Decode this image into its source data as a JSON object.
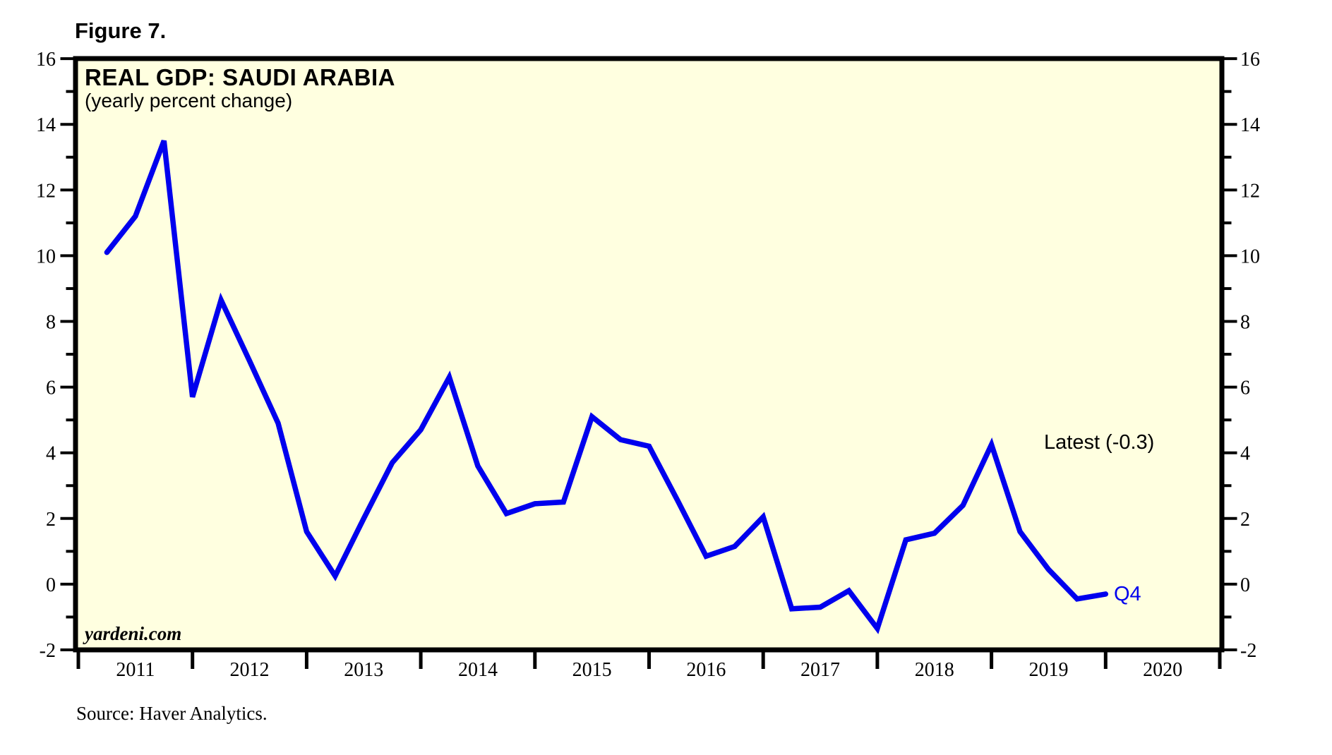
{
  "figure_label": "Figure 7.",
  "header": {
    "title": "REAL GDP: SAUDI ARABIA",
    "subtitle": "(yearly percent change)"
  },
  "watermark": "yardeni.com",
  "annotations": {
    "latest": "Latest (-0.3)",
    "last_point": "Q4"
  },
  "source": "Source: Haver Analytics.",
  "colors": {
    "line": "#0000EE",
    "plot_background": "#FFFFE0",
    "frame": "#000000",
    "text": "#000000"
  },
  "chart_data": {
    "type": "line",
    "title": "REAL GDP: SAUDI ARABIA",
    "subtitle": "(yearly percent change)",
    "series_name": "Saudi Arabia real GDP, yearly percent change (quarterly)",
    "x": [
      "2011 Q1",
      "2011 Q2",
      "2011 Q3",
      "2011 Q4",
      "2012 Q1",
      "2012 Q2",
      "2012 Q3",
      "2012 Q4",
      "2013 Q1",
      "2013 Q2",
      "2013 Q3",
      "2013 Q4",
      "2014 Q1",
      "2014 Q2",
      "2014 Q3",
      "2014 Q4",
      "2015 Q1",
      "2015 Q2",
      "2015 Q3",
      "2015 Q4",
      "2016 Q1",
      "2016 Q2",
      "2016 Q3",
      "2016 Q4",
      "2017 Q1",
      "2017 Q2",
      "2017 Q3",
      "2017 Q4",
      "2018 Q1",
      "2018 Q2",
      "2018 Q3",
      "2018 Q4",
      "2019 Q1",
      "2019 Q2",
      "2019 Q3",
      "2019 Q4"
    ],
    "values": [
      10.1,
      11.2,
      13.5,
      5.7,
      8.65,
      6.8,
      4.9,
      1.6,
      0.25,
      2.0,
      3.7,
      4.7,
      6.3,
      3.6,
      2.15,
      2.45,
      2.5,
      5.1,
      4.4,
      4.2,
      2.55,
      0.85,
      1.15,
      2.05,
      -0.75,
      -0.7,
      -0.2,
      -1.35,
      1.35,
      1.55,
      2.4,
      4.25,
      1.6,
      0.45,
      -0.45,
      -0.3
    ],
    "latest_value": -0.3,
    "latest_quarter": "Q4",
    "xlabel": "",
    "ylabel": "",
    "x_axis_years": [
      2011,
      2012,
      2013,
      2014,
      2015,
      2016,
      2017,
      2018,
      2019,
      2020
    ],
    "x_range_years": [
      2011,
      2021
    ],
    "ylim": [
      -2,
      16
    ],
    "y_major_ticks": [
      16,
      14,
      12,
      10,
      8,
      6,
      4,
      2,
      0,
      -2
    ],
    "y_minor_tick_step": 1,
    "y_axis_sides": "both",
    "grid": false,
    "legend": "none"
  }
}
